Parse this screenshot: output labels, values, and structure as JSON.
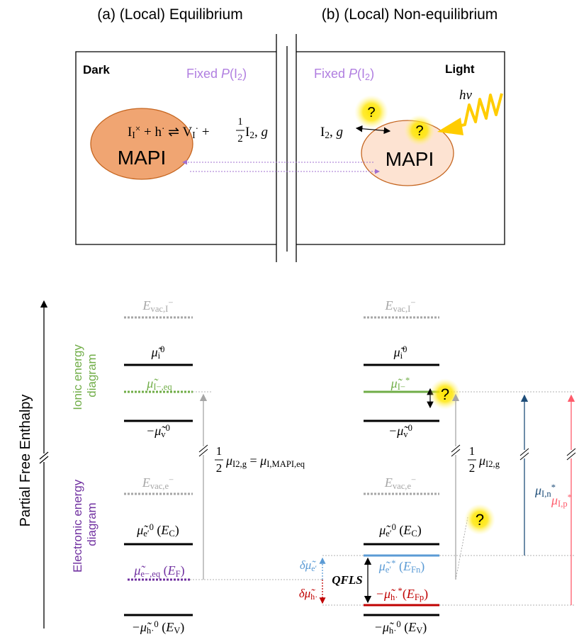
{
  "panel_a": {
    "title": "(a) (Local) Equilibrium",
    "condition": "Dark",
    "fixed": [
      "Fixed ",
      "P",
      "(I",
      "2",
      ")"
    ],
    "material": "MAPI",
    "reaction": {
      "lhs": [
        "I",
        "I",
        "×",
        " + h",
        "·",
        " ⇌ V",
        "I",
        "·",
        " + "
      ],
      "num": "1",
      "den": "2",
      "rhs": [
        " I",
        "2",
        ", ",
        "g"
      ]
    }
  },
  "panel_b": {
    "title": "(b) (Local) Non-equilibrium",
    "condition": "Light",
    "fixed": [
      "Fixed ",
      "P",
      "(I",
      "2",
      ")"
    ],
    "material": "MAPI",
    "gas": [
      "I",
      "2",
      ", ",
      "g"
    ],
    "photon": "hν",
    "unknowns": [
      "?",
      "?"
    ]
  },
  "diagram": {
    "y_axis": "Partial Free Enthalpy",
    "ionic": [
      "Ionic energy",
      "diagram"
    ],
    "electronic": [
      "Electronic energy",
      "diagram"
    ],
    "left": {
      "evac_i": [
        "E",
        "vac,I",
        "−"
      ],
      "mu_i0": [
        "μ̃",
        "i",
        "0"
      ],
      "mu_i_eq": [
        "μ̃",
        "I−,eq"
      ],
      "mu_v0": [
        "−μ̃",
        "v",
        "0"
      ],
      "evac_e": [
        "E",
        "vac,e",
        "−"
      ],
      "mu_e0": [
        "μ̃",
        "e′",
        "0",
        " (",
        "E",
        "C",
        ")"
      ],
      "mu_e_eq": [
        "μ̃",
        "e−,eq",
        " (",
        "E",
        "F",
        ")"
      ],
      "mu_h0": [
        "−μ̃",
        "h·",
        "0",
        " (",
        "E",
        "V",
        ")"
      ],
      "half": {
        "num": "1",
        "den": "2",
        "expr": [
          "μ",
          "I",
          "2",
          ",g",
          " = ",
          "μ",
          "I,MAPI,eq"
        ]
      }
    },
    "right": {
      "evac_i": [
        "E",
        "vac,I",
        "−"
      ],
      "mu_i0": [
        "μ̃",
        "i",
        "0"
      ],
      "mu_i_star": [
        "μ̃",
        "I−",
        "*"
      ],
      "mu_v0": [
        "−μ̃",
        "v",
        "0"
      ],
      "evac_e": [
        "E",
        "vac,e",
        "−"
      ],
      "mu_e0": [
        "μ̃",
        "e′",
        "0",
        " (",
        "E",
        "C",
        ")"
      ],
      "mu_e_star": [
        "μ̃",
        "e′",
        "*",
        " (",
        "E",
        "Fn",
        ")"
      ],
      "mu_h_star": [
        "−μ̃",
        "h·",
        "*",
        "(",
        "E",
        "Fp",
        ")"
      ],
      "mu_h0": [
        "−μ̃",
        "h·",
        "0",
        " (",
        "E",
        "V",
        ")"
      ],
      "delta_e": [
        "δμ̃",
        "e′"
      ],
      "delta_h": [
        "δμ̃",
        "h·"
      ],
      "qfls": "QFLS",
      "half": {
        "num": "1",
        "den": "2",
        "expr": [
          "μ",
          "I",
          "2",
          ",g"
        ]
      },
      "mu_in": [
        "μ",
        "I,n",
        "*"
      ],
      "mu_ip": [
        "μ",
        "I,p",
        "*"
      ],
      "unknowns": [
        "?",
        "?"
      ]
    }
  }
}
